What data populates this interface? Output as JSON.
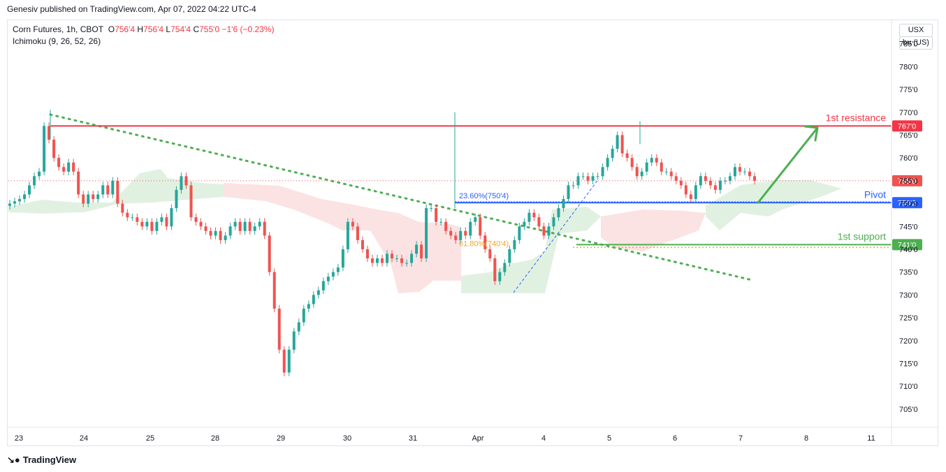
{
  "header": {
    "published": "Genesiv published on TradingView.com, Apr 07, 2022 04:22 UTC-4"
  },
  "legend": {
    "symbol": "Corn Futures, 1h, CBOT",
    "o_label": "O",
    "o": "756'4",
    "h_label": "H",
    "h": "756'4",
    "l_label": "L",
    "l": "754'4",
    "c_label": "C",
    "c": "755'0",
    "change": "−1'6 (−0.23%)",
    "indicator": "Ichimoku (9, 26, 52, 26)"
  },
  "axis_controls": {
    "currency": "USX",
    "unit": "bu (US)"
  },
  "footer": {
    "brand": "TradingView"
  },
  "colors": {
    "up": "#26a69a",
    "down": "#ef5350",
    "resistance": "#f23645",
    "support": "#4caf50",
    "pivot": "#2962ff",
    "fib": "#f5a623"
  },
  "chart_data": {
    "type": "candlestick",
    "x_ticks": [
      "23",
      "24",
      "25",
      "28",
      "29",
      "30",
      "31",
      "Apr",
      "4",
      "5",
      "6",
      "7",
      "8",
      "11"
    ],
    "y_ticks": [
      "785'0",
      "780'0",
      "775'0",
      "770'0",
      "765'0",
      "760'0",
      "755'0",
      "750'0",
      "745'0",
      "740'0",
      "735'0",
      "730'0",
      "725'0",
      "720'0",
      "715'0",
      "710'0",
      "705'0"
    ],
    "ylim": [
      701,
      790
    ],
    "levels": [
      {
        "name": "1st resistance",
        "value": 767.0,
        "badge": "767'0",
        "color": "#f23645"
      },
      {
        "name": "Pivot",
        "value": 750.2,
        "badge": "750'2",
        "color": "#2962ff"
      },
      {
        "name": "1st support",
        "value": 741.0,
        "badge": "741'0",
        "color": "#4caf50"
      }
    ],
    "last_price": {
      "value": 755.0,
      "badge": "755'0"
    },
    "fib_labels": [
      "23.60%(750'4)",
      "61.80%(740'4)"
    ],
    "fib_levels": [
      750.4,
      740.4
    ],
    "closes": [
      750,
      750.5,
      751,
      752,
      754,
      756,
      757,
      767,
      764,
      760,
      758,
      757,
      759,
      757,
      752,
      750,
      752,
      751,
      752,
      754,
      752,
      755,
      750,
      748,
      747,
      747,
      746,
      745,
      746,
      744,
      746,
      747,
      745,
      749,
      753,
      756,
      754,
      747,
      746,
      745,
      744,
      743,
      744,
      742,
      743,
      745,
      746,
      744,
      746,
      744,
      745,
      746,
      743,
      735,
      727,
      718,
      713,
      718,
      722,
      724,
      727,
      728,
      730,
      731,
      733,
      734,
      735,
      736,
      740,
      746,
      745,
      742,
      740,
      738,
      737,
      738,
      737,
      739,
      738,
      738,
      737,
      737,
      739,
      741,
      738,
      749,
      749,
      746,
      746,
      744,
      743,
      742,
      744,
      743,
      746,
      747,
      743,
      740,
      738,
      733,
      735,
      737,
      740,
      742,
      745,
      746,
      748,
      747,
      745,
      743,
      745,
      747,
      749,
      751,
      754,
      754,
      756,
      756,
      755,
      756,
      756,
      758,
      760,
      762,
      765,
      761,
      760,
      758,
      756,
      757,
      759,
      760,
      759,
      757,
      757,
      756,
      755,
      754,
      752,
      751,
      754,
      756,
      755,
      754,
      753,
      755,
      755,
      756,
      758,
      757,
      757,
      756,
      755
    ]
  }
}
